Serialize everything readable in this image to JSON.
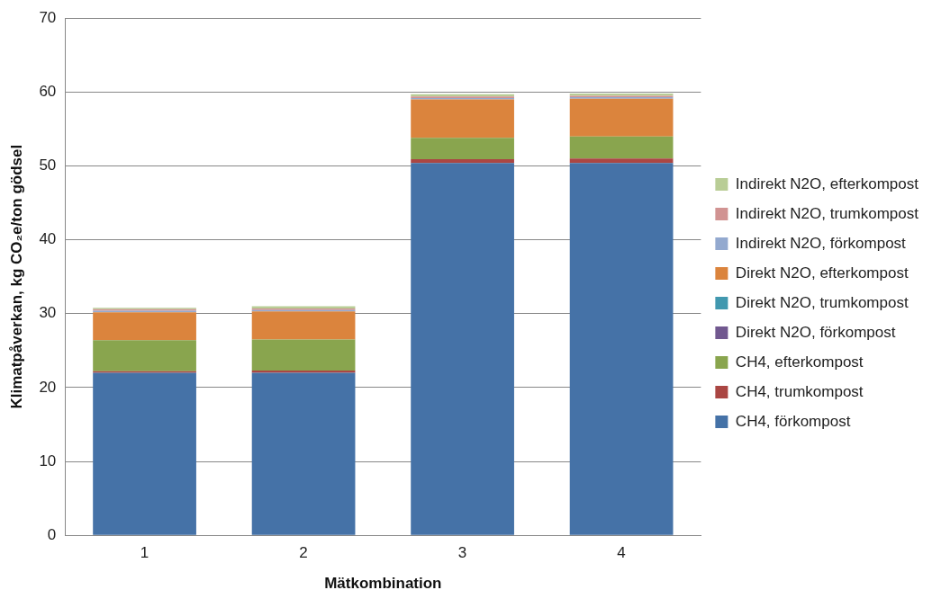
{
  "chart_data": {
    "type": "bar",
    "stacked": true,
    "xlabel": "Mätkombination",
    "ylabel": "Klimatpåverkan, kg CO₂e/ton gödsel",
    "categories": [
      "1",
      "2",
      "3",
      "4"
    ],
    "ylim": [
      0,
      70
    ],
    "yticks": [
      0,
      10,
      20,
      30,
      40,
      50,
      60,
      70
    ],
    "grid": "y",
    "legend": "right",
    "series": [
      {
        "name": "CH4, förkompost",
        "color": "#4572a7",
        "values": [
          22.0,
          22.0,
          50.4,
          50.4
        ]
      },
      {
        "name": "CH4, trumkompost",
        "color": "#aa4643",
        "values": [
          0.2,
          0.3,
          0.5,
          0.6
        ]
      },
      {
        "name": "CH4, efterkompost",
        "color": "#89a54e",
        "values": [
          4.2,
          4.2,
          2.9,
          3.0
        ]
      },
      {
        "name": "Direkt N2O, förkompost",
        "color": "#71588f",
        "values": [
          null,
          null,
          null,
          null
        ]
      },
      {
        "name": "Direkt N2O, trumkompost",
        "color": "#4198af",
        "values": [
          null,
          null,
          null,
          null
        ]
      },
      {
        "name": "Direkt N2O, efterkompost",
        "color": "#db843d",
        "values": [
          3.8,
          3.8,
          5.2,
          5.1
        ]
      },
      {
        "name": "Indirekt N2O, förkompost",
        "color": "#93a9cf",
        "values": [
          0.2,
          0.2,
          0.2,
          0.2
        ]
      },
      {
        "name": "Indirekt N2O, trumkompost",
        "color": "#d19392",
        "values": [
          0.2,
          0.2,
          0.2,
          0.2
        ]
      },
      {
        "name": "Indirekt N2O, efterkompost",
        "color": "#b9cd96",
        "values": [
          0.2,
          0.3,
          0.3,
          0.3
        ]
      }
    ]
  }
}
